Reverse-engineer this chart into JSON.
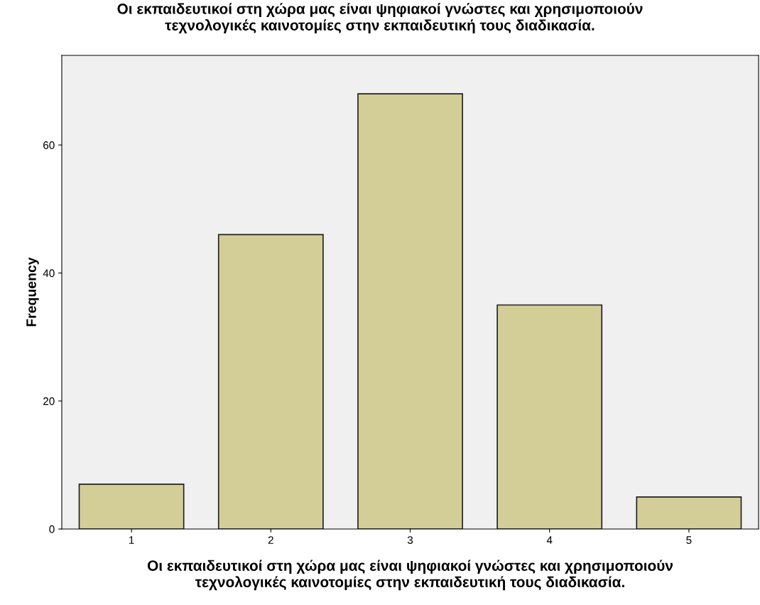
{
  "chart_data": {
    "type": "bar",
    "title": "Οι εκπαιδευτικοί στη χώρα μας είναι ψηφιακοί γνώστες και χρησιμοποιούν\nτεχνολογικές καινοτομίες στην εκπαιδευτική τους διαδικασία.",
    "xlabel": "Οι εκπαιδευτικοί στη χώρα μας είναι ψηφιακοί γνώστες και χρησιμοποιούν\nτεχνολογικές καινοτομίες στην εκπαιδευτική τους διαδικασία.",
    "ylabel": "Frequency",
    "categories": [
      "1",
      "2",
      "3",
      "4",
      "5"
    ],
    "values": [
      7,
      46,
      68,
      35,
      5
    ],
    "color": "#d3ce97",
    "ylim": [
      0,
      74
    ],
    "yticks": [
      0,
      20,
      40,
      60
    ],
    "grid": false
  }
}
